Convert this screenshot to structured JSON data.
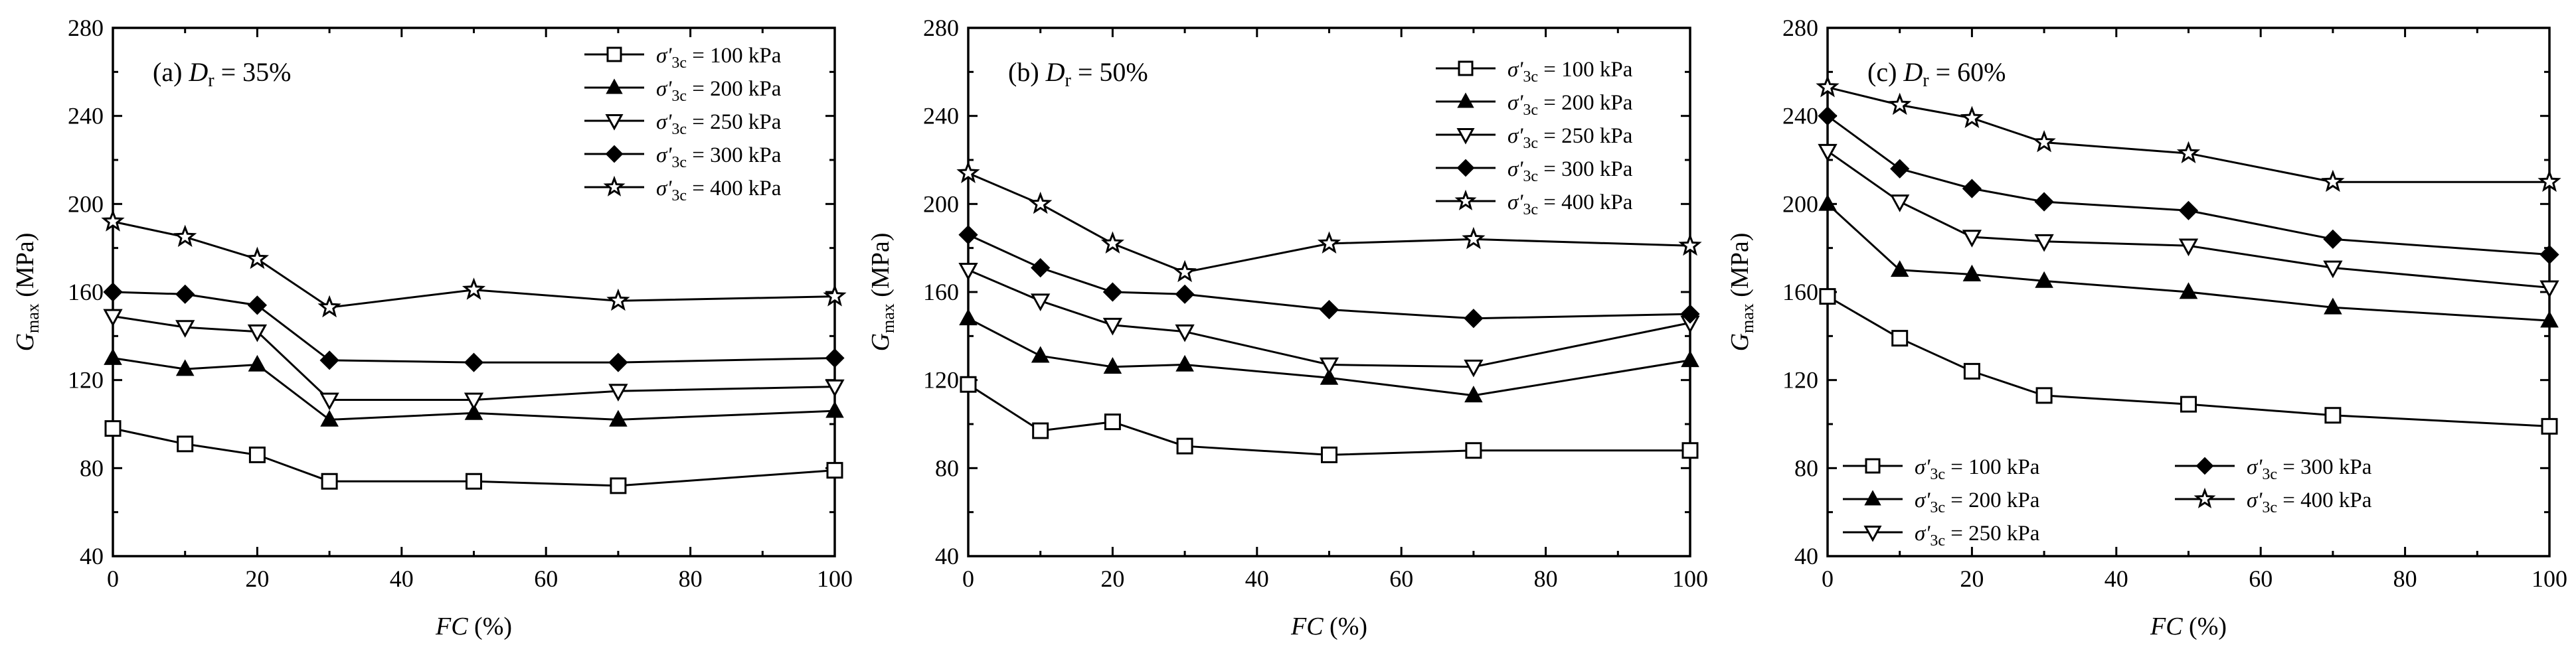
{
  "figure": {
    "sigma_label": "σ'",
    "sigma_sub": "3c",
    "unit": "kPa"
  },
  "chart_data": [
    {
      "type": "line",
      "panel_label": "(a)",
      "dr_symbol": "D",
      "dr_sub": "r",
      "dr_value": "= 35%",
      "xlabel_italic": "FC",
      "xlabel_rest": " (%)",
      "ylabel_main": "G",
      "ylabel_sub": "max",
      "ylabel_rest": " (MPa)",
      "xlim": [
        0,
        100
      ],
      "ylim": [
        40,
        280
      ],
      "xticks": [
        0,
        20,
        40,
        60,
        80,
        100
      ],
      "yticks": [
        40,
        80,
        120,
        160,
        200,
        240,
        280
      ],
      "legend_position": "top-right",
      "x": [
        0,
        10,
        20,
        30,
        50,
        70,
        100
      ],
      "series": [
        {
          "name": "= 100 kPa",
          "marker": "square-open",
          "values": [
            98,
            91,
            86,
            74,
            74,
            72,
            79
          ]
        },
        {
          "name": "= 200 kPa",
          "marker": "triangle-up-solid",
          "values": [
            130,
            125,
            127,
            102,
            105,
            102,
            106
          ]
        },
        {
          "name": "= 250 kPa",
          "marker": "triangle-down-open",
          "values": [
            149,
            144,
            142,
            111,
            111,
            115,
            117
          ]
        },
        {
          "name": "= 300 kPa",
          "marker": "diamond-solid",
          "values": [
            160,
            159,
            154,
            129,
            128,
            128,
            130
          ]
        },
        {
          "name": "= 400 kPa",
          "marker": "star-open",
          "values": [
            192,
            185,
            175,
            153,
            161,
            156,
            158
          ]
        }
      ]
    },
    {
      "type": "line",
      "panel_label": "(b)",
      "dr_symbol": "D",
      "dr_sub": "r",
      "dr_value": "= 50%",
      "xlabel_italic": "FC",
      "xlabel_rest": " (%)",
      "ylabel_main": "G",
      "ylabel_sub": "max",
      "ylabel_rest": " (MPa)",
      "xlim": [
        0,
        100
      ],
      "ylim": [
        40,
        280
      ],
      "xticks": [
        0,
        20,
        40,
        60,
        80,
        100
      ],
      "yticks": [
        40,
        80,
        120,
        160,
        200,
        240,
        280
      ],
      "legend_position": "top-right",
      "x": [
        0,
        10,
        20,
        30,
        50,
        70,
        100
      ],
      "series": [
        {
          "name": "= 100 kPa",
          "marker": "square-open",
          "values": [
            118,
            97,
            101,
            90,
            86,
            88,
            88
          ]
        },
        {
          "name": "= 200 kPa",
          "marker": "triangle-up-solid",
          "values": [
            148,
            131,
            126,
            127,
            121,
            113,
            129
          ]
        },
        {
          "name": "= 250 kPa",
          "marker": "triangle-down-open",
          "values": [
            170,
            156,
            145,
            142,
            127,
            126,
            146
          ]
        },
        {
          "name": "= 300 kPa",
          "marker": "diamond-solid",
          "values": [
            186,
            171,
            160,
            159,
            152,
            148,
            150
          ]
        },
        {
          "name": "= 400 kPa",
          "marker": "star-open",
          "values": [
            214,
            200,
            182,
            169,
            182,
            184,
            181
          ]
        }
      ]
    },
    {
      "type": "line",
      "panel_label": "(c)",
      "dr_symbol": "D",
      "dr_sub": "r",
      "dr_value": "= 60%",
      "xlabel_italic": "FC",
      "xlabel_rest": " (%)",
      "ylabel_main": "G",
      "ylabel_sub": "max",
      "ylabel_rest": " (MPa)",
      "xlim": [
        0,
        100
      ],
      "ylim": [
        40,
        280
      ],
      "xticks": [
        0,
        20,
        40,
        60,
        80,
        100
      ],
      "yticks": [
        40,
        80,
        120,
        160,
        200,
        240,
        280
      ],
      "legend_position": "bottom-left",
      "x": [
        0,
        10,
        20,
        30,
        50,
        70,
        100
      ],
      "series": [
        {
          "name": "= 100 kPa",
          "marker": "square-open",
          "values": [
            158,
            139,
            124,
            113,
            109,
            104,
            99
          ]
        },
        {
          "name": "= 200 kPa",
          "marker": "triangle-up-solid",
          "values": [
            200,
            170,
            168,
            165,
            160,
            153,
            147
          ]
        },
        {
          "name": "= 250 kPa",
          "marker": "triangle-down-open",
          "values": [
            224,
            201,
            185,
            183,
            181,
            171,
            162
          ]
        },
        {
          "name": "= 300 kPa",
          "marker": "diamond-solid",
          "values": [
            240,
            216,
            207,
            201,
            197,
            184,
            177
          ]
        },
        {
          "name": "= 400 kPa",
          "marker": "star-open",
          "values": [
            253,
            245,
            239,
            228,
            223,
            210,
            210
          ]
        }
      ]
    }
  ]
}
